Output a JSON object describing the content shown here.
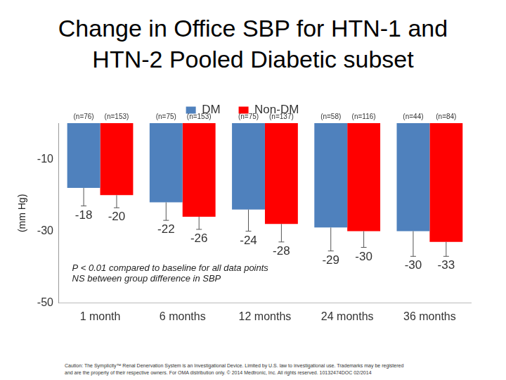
{
  "chart_data": {
    "type": "bar",
    "title": [
      "Change in Office SBP for HTN-1 and",
      "HTN-2 Pooled Diabetic subset"
    ],
    "y_label": "(mm Hg)",
    "categories": [
      "1 month",
      "6 months",
      "12 months",
      "24 months",
      "36 months"
    ],
    "series": [
      {
        "name": "DM",
        "color": "#4f81bd",
        "values": [
          -18,
          -22,
          -24,
          -29,
          -30
        ],
        "errors": [
          5,
          5,
          6,
          6.5,
          7
        ],
        "n_labels": [
          "(n=76)",
          "(n=75)",
          "(n=75)",
          "(n=58)",
          "(n=44)"
        ]
      },
      {
        "name": "Non-DM",
        "color": "#ff0000",
        "values": [
          -20,
          -26,
          -28,
          -30,
          -33
        ],
        "errors": [
          3.5,
          3.5,
          5,
          4.5,
          4
        ],
        "n_labels": [
          "(n=153)",
          "(n=153)",
          "(n=137)",
          "(n=116)",
          "(n=84)"
        ]
      }
    ],
    "ylim": [
      -50,
      0
    ],
    "yticks": [
      -50,
      -30,
      -10
    ],
    "grid": false,
    "legend": "top",
    "data_labels": true,
    "annotations": [
      "P < 0.01 compared to baseline for all data points",
      "NS between group difference in SBP"
    ],
    "footnote": [
      "Caution: The Symplicity™ Renal Denervation System is an Investigational Device. Limited by U.S. law to investigational use. Trademarks may be registered",
      "and are the property of their respective owners. For OMA distribution only. © 2014 Medtronic, Inc. All rights reserved. 10132474DOC 02/2014"
    ]
  }
}
